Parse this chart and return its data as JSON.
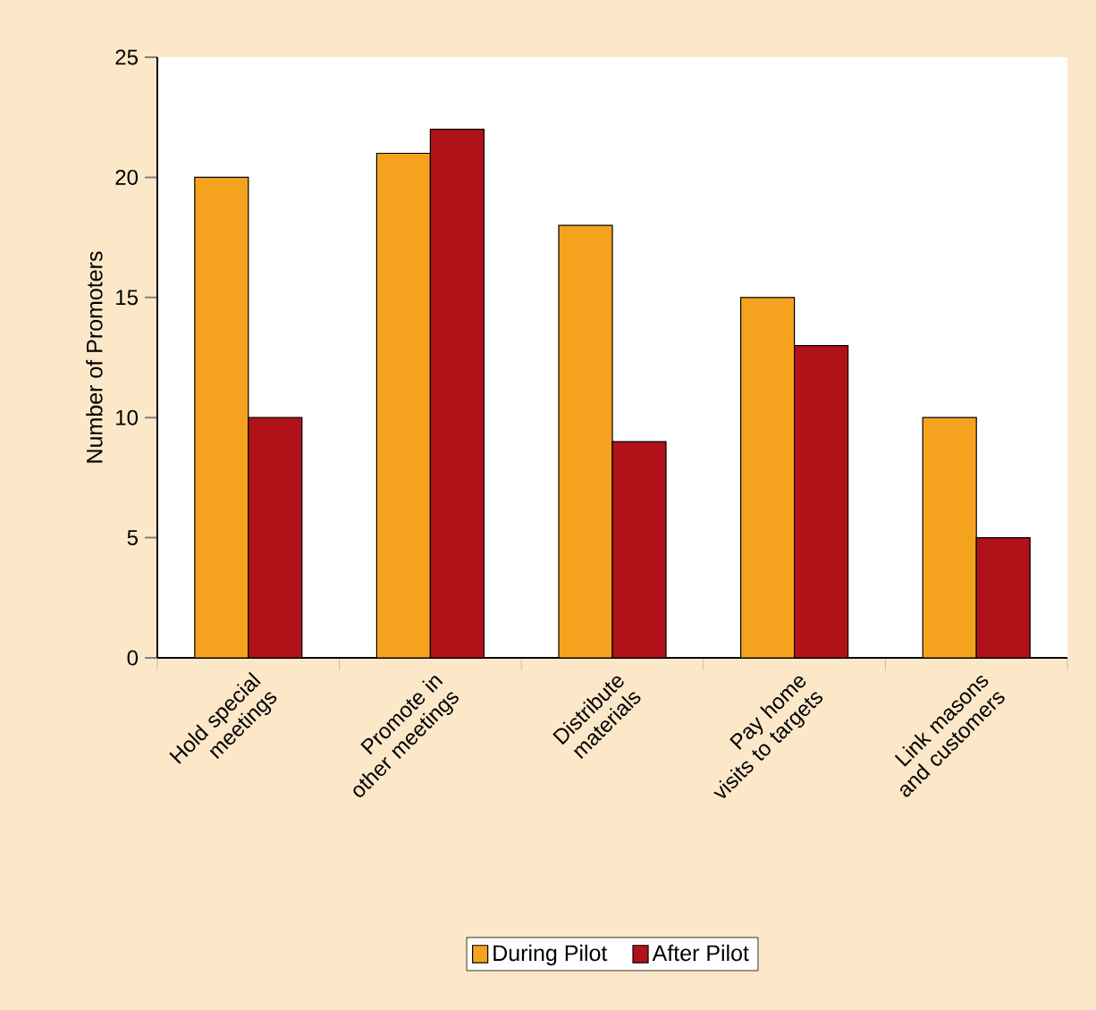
{
  "chart_data": {
    "type": "bar",
    "ylabel": "Number of Promoters",
    "categories": [
      "Hold special meetings",
      "Promote in other meetings",
      "Distribute materials",
      "Pay home visits to targets",
      "Link masons and customers"
    ],
    "series": [
      {
        "name": "During Pilot",
        "color": "#f5a31e",
        "values": [
          20,
          21,
          18,
          15,
          10
        ]
      },
      {
        "name": "After Pilot",
        "color": "#b0121a",
        "values": [
          10,
          22,
          9,
          13,
          5
        ]
      }
    ],
    "ylim": [
      0,
      25
    ],
    "yticks": [
      0,
      5,
      10,
      15,
      20,
      25
    ],
    "grid": false,
    "legend": "bottom"
  }
}
